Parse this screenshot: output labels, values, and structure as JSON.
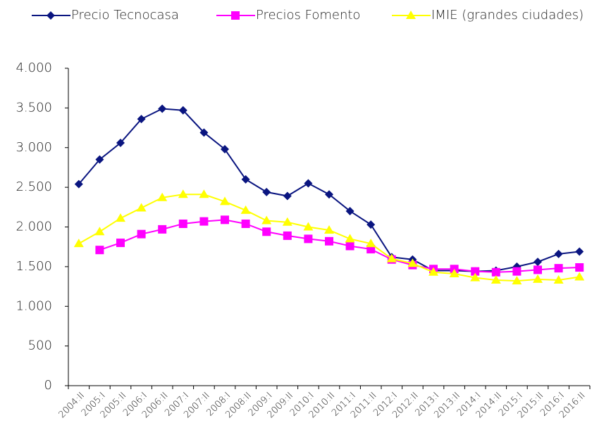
{
  "chart_data": {
    "type": "line",
    "categories": [
      "2004:II",
      "2005:I",
      "2005:II",
      "2006:I",
      "2006:II",
      "2007:I",
      "2007:II",
      "2008:I",
      "2008:II",
      "2009:I",
      "2009:II",
      "2010:I",
      "2010:II",
      "2011:I",
      "2011:II",
      "2012:I",
      "2012:II",
      "2013:I",
      "2013:II",
      "2014:I",
      "2014:II",
      "2015:I",
      "2015:II",
      "2016:I",
      "2016:II"
    ],
    "series": [
      {
        "name": "Precio Tecnocasa",
        "color": "#0a1580",
        "marker": "diamond",
        "values": [
          2540,
          2850,
          3060,
          3360,
          3490,
          3470,
          3190,
          2980,
          2600,
          2440,
          2390,
          2550,
          2410,
          2200,
          2030,
          1620,
          1590,
          1450,
          1450,
          1440,
          1450,
          1500,
          1560,
          1660,
          1690
        ]
      },
      {
        "name": "Precios Fomento",
        "color": "#ff00ff",
        "marker": "square",
        "values": [
          null,
          1710,
          1800,
          1910,
          1970,
          2040,
          2070,
          2090,
          2040,
          1940,
          1890,
          1850,
          1820,
          1760,
          1720,
          1590,
          1520,
          1470,
          1470,
          1440,
          1430,
          1440,
          1460,
          1480,
          1490
        ]
      },
      {
        "name": "IMIE (grandes ciudades)",
        "color": "#ffff00",
        "marker": "triangle",
        "values": [
          1790,
          1940,
          2110,
          2240,
          2370,
          2410,
          2410,
          2320,
          2210,
          2080,
          2060,
          2000,
          1960,
          1850,
          1790,
          1600,
          1540,
          1430,
          1410,
          1360,
          1330,
          1320,
          1340,
          1330,
          1370
        ]
      }
    ],
    "ylim": [
      0,
      4000
    ],
    "yticks": [
      0,
      500,
      {
        "value": 1000,
        "label": "1.000"
      },
      {
        "value": 1500,
        "label": "1.500"
      },
      {
        "value": 2000,
        "label": "2.000"
      },
      {
        "value": 2500,
        "label": "2.500"
      },
      {
        "value": 3000,
        "label": "3.000"
      },
      {
        "value": 3500,
        "label": "3.500"
      },
      {
        "value": 4000,
        "label": "4.000"
      }
    ],
    "grid": false,
    "legend": "top"
  }
}
